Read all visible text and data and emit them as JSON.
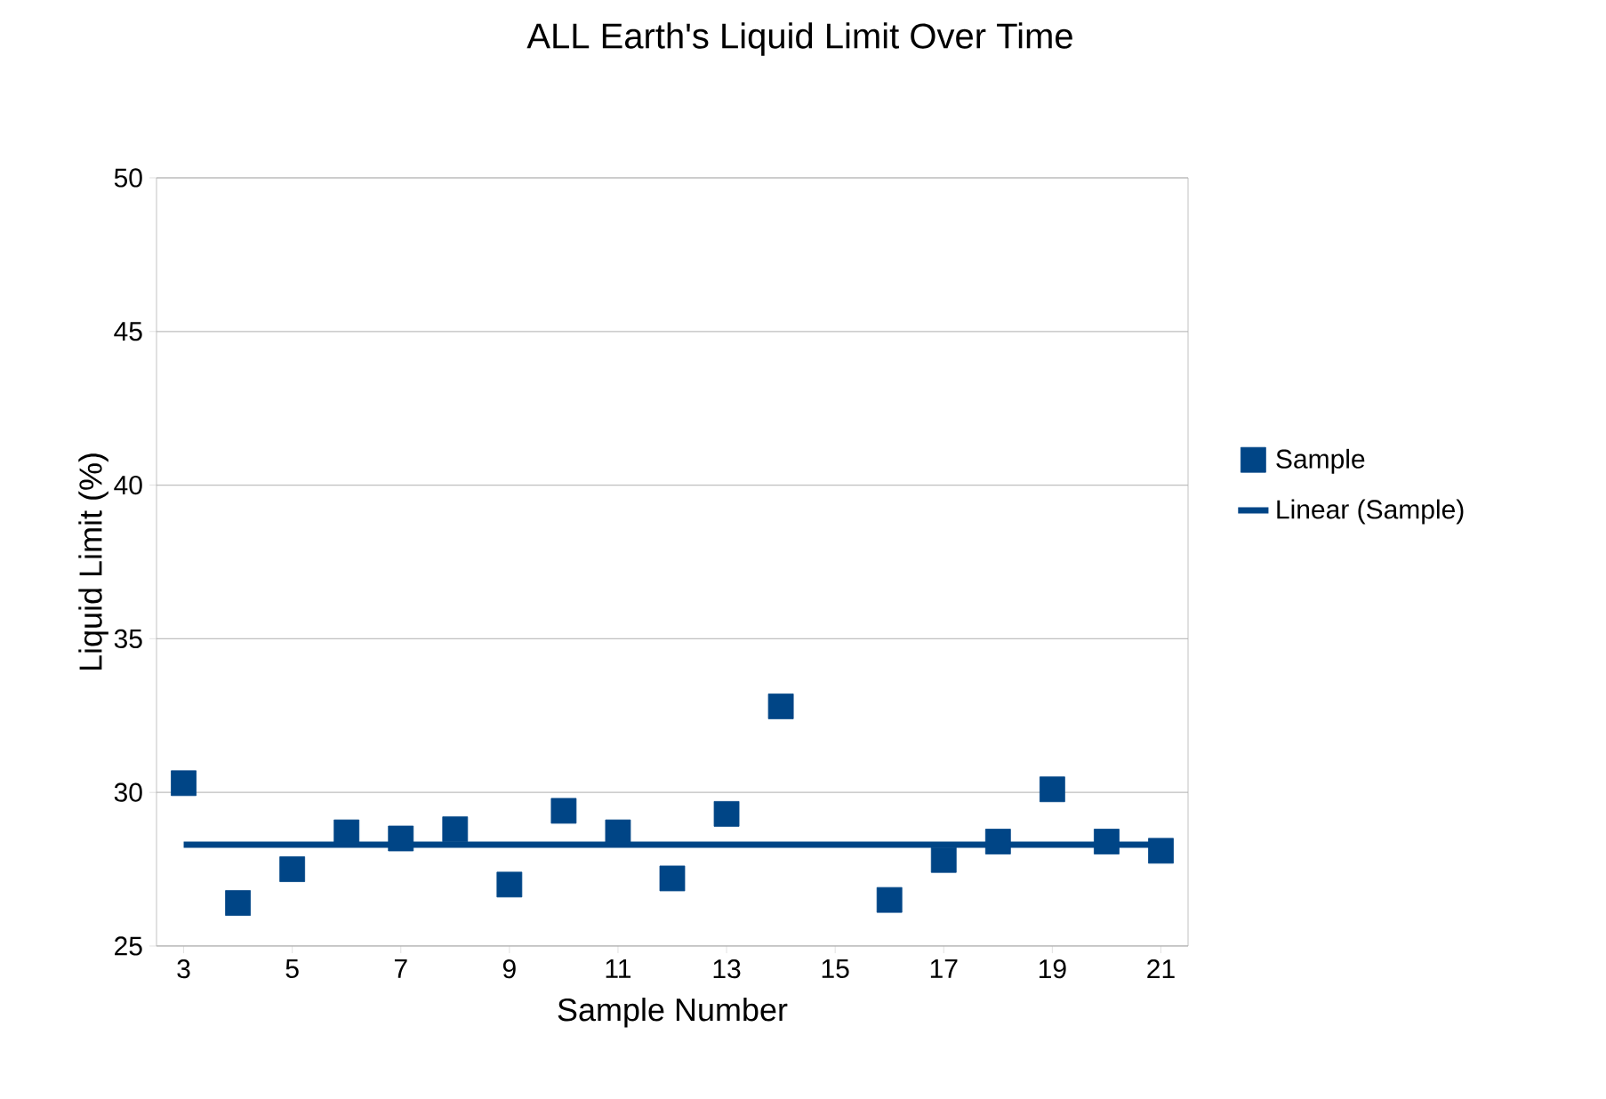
{
  "chart_data": {
    "type": "scatter",
    "title": "ALL Earth's Liquid Limit Over Time",
    "xlabel": "Sample Number",
    "ylabel": "Liquid Limit (%)",
    "series": [
      {
        "name": "Sample",
        "color": "#004586",
        "marker": "square",
        "x": [
          3,
          4,
          5,
          6,
          7,
          8,
          9,
          10,
          11,
          12,
          13,
          14,
          15,
          16,
          17,
          18,
          19,
          20,
          21
        ],
        "values": [
          30.3,
          26.4,
          27.5,
          28.7,
          28.5,
          28.8,
          27.0,
          29.4,
          28.7,
          27.2,
          29.3,
          32.8,
          null,
          26.5,
          27.8,
          28.4,
          30.1,
          28.4,
          28.1
        ]
      },
      {
        "name": "Linear (Sample)",
        "type": "line",
        "color": "#004586",
        "marker": "none",
        "line_style": "solid",
        "x": [
          3,
          21
        ],
        "values": [
          28.3,
          28.3
        ]
      }
    ],
    "xlim": [
      2.5,
      21.5
    ],
    "xticks": [
      3,
      5,
      7,
      9,
      11,
      13,
      15,
      17,
      19,
      21
    ],
    "ylim": [
      25,
      50
    ],
    "yticks": [
      25,
      30,
      35,
      40,
      45,
      50
    ],
    "grid": "y",
    "legend": "right"
  }
}
